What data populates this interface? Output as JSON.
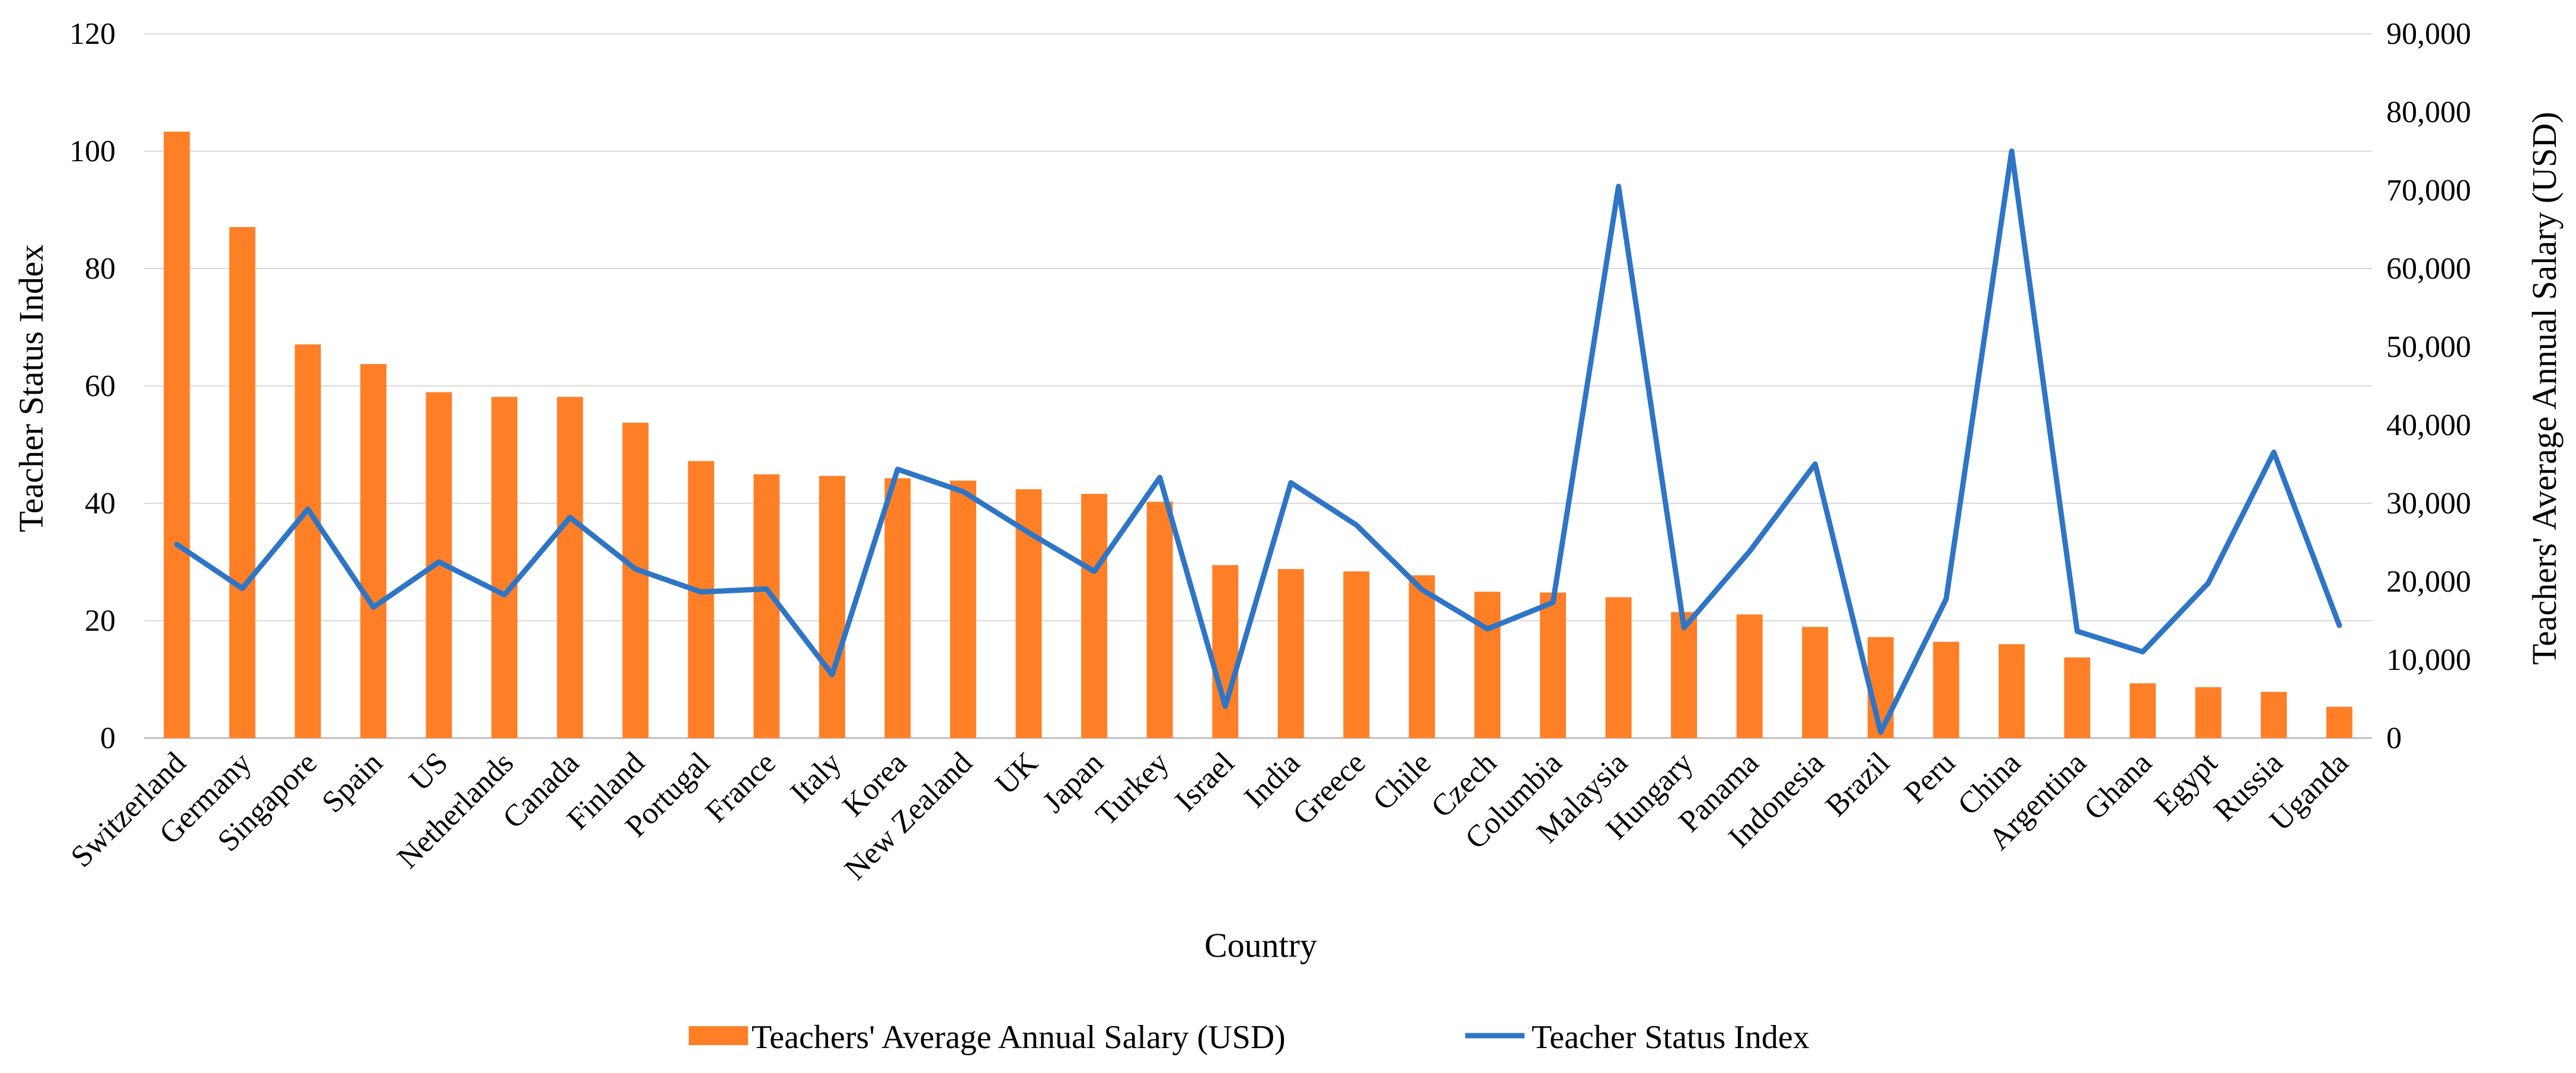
{
  "chart_data": {
    "type": "bar+line",
    "categories": [
      "Switzerland",
      "Germany",
      "Singapore",
      "Spain",
      "US",
      "Netherlands",
      "Canada",
      "Finland",
      "Portugal",
      "France",
      "Italy",
      "Korea",
      "New Zealand",
      "UK",
      "Japan",
      "Turkey",
      "Israel",
      "India",
      "Greece",
      "Chile",
      "Czech",
      "Columbia",
      "Malaysia",
      "Hungary",
      "Panama",
      "Indonesia",
      "Brazil",
      "Peru",
      "China",
      "Argentina",
      "Ghana",
      "Egypt",
      "Russia",
      "Uganda"
    ],
    "series": [
      {
        "name": "Teachers' Average Annual Salary (USD)",
        "type": "bar",
        "axis": "right",
        "color": "#ff7f27",
        "values": [
          77500,
          65300,
          50300,
          47800,
          44200,
          43600,
          43600,
          40300,
          35400,
          33700,
          33500,
          33200,
          32900,
          31800,
          31200,
          30200,
          22100,
          21600,
          21300,
          20800,
          18700,
          18600,
          18000,
          16100,
          15800,
          14200,
          12900,
          12300,
          12000,
          10300,
          7000,
          6500,
          5900,
          4000
        ]
      },
      {
        "name": "Teacher Status Index",
        "type": "line",
        "axis": "left",
        "color": "#2e75c6",
        "values": [
          33.0,
          25.5,
          39.0,
          22.3,
          30.0,
          24.4,
          37.6,
          28.8,
          24.9,
          25.4,
          10.8,
          45.8,
          42.0,
          35.0,
          28.4,
          44.4,
          5.4,
          43.5,
          36.3,
          25.3,
          18.6,
          23.1,
          94.0,
          18.8,
          31.8,
          46.7,
          1.0,
          23.7,
          100.0,
          18.2,
          14.7,
          26.4,
          48.7,
          19.2
        ]
      }
    ],
    "xlabel": "Country",
    "ylabel": "Teacher Status Index",
    "y2label": "Teachers' Average Annual Salary (USD)",
    "ylim": [
      0,
      120
    ],
    "y2lim": [
      0,
      90000
    ],
    "yticks": [
      "0",
      "20",
      "40",
      "60",
      "80",
      "100",
      "120"
    ],
    "y2ticks": [
      "0",
      "10,000",
      "20,000",
      "30,000",
      "40,000",
      "50,000",
      "60,000",
      "70,000",
      "80,000",
      "90,000"
    ],
    "grid": true,
    "legend_position": "bottom"
  }
}
